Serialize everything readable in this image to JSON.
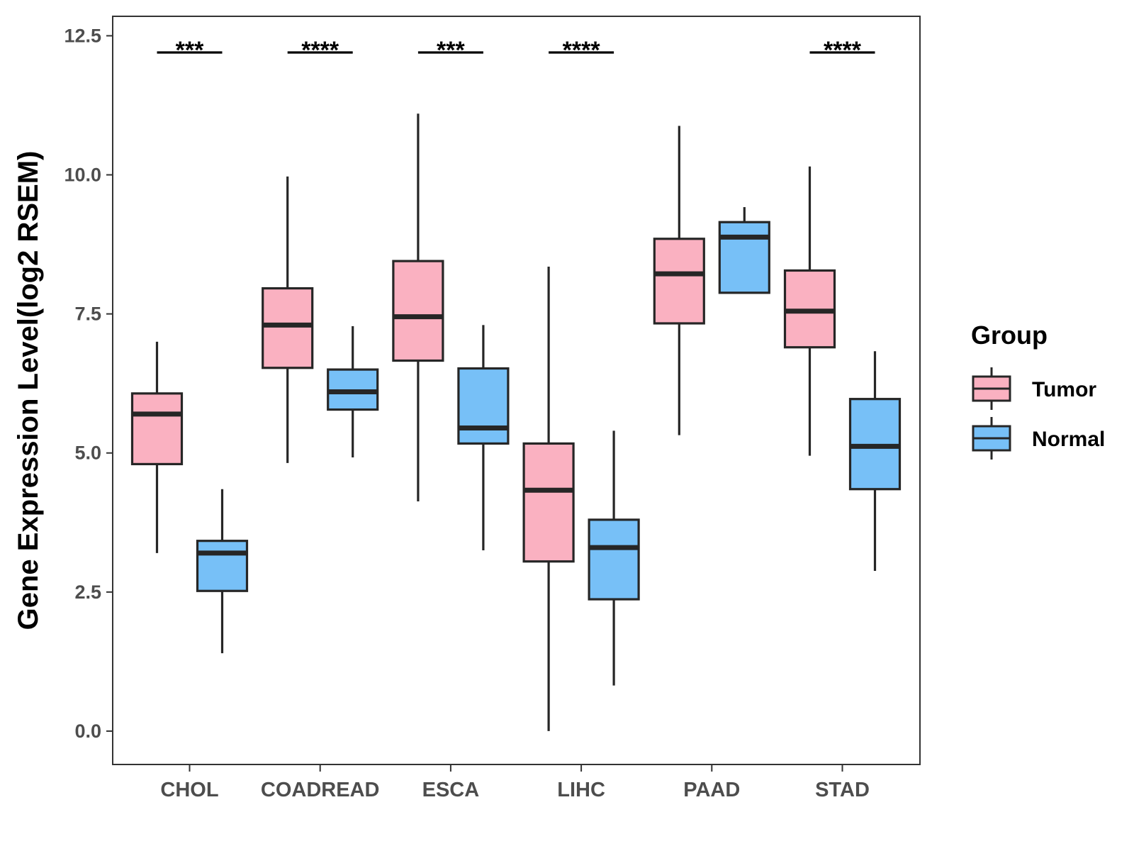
{
  "chart_data": {
    "type": "boxplot",
    "title": "",
    "xlabel": "",
    "ylabel": "Gene Expression Level(log2 RSEM)",
    "ylim": [
      -0.6,
      12.85
    ],
    "yticks": [
      0.0,
      2.5,
      5.0,
      7.5,
      10.0,
      12.5
    ],
    "ytick_labels": [
      "0.0",
      "2.5",
      "5.0",
      "7.5",
      "10.0",
      "12.5"
    ],
    "categories": [
      "CHOL",
      "COADREAD",
      "ESCA",
      "LIHC",
      "PAAD",
      "STAD"
    ],
    "grid": false,
    "legend": {
      "title": "Group",
      "position": "right"
    },
    "series": [
      {
        "name": "Tumor",
        "color": "#fab1c1",
        "boxes": [
          {
            "whisker_low": 3.2,
            "q1": 4.8,
            "median": 5.7,
            "q3": 6.07,
            "whisker_high": 7.0
          },
          {
            "whisker_low": 4.82,
            "q1": 6.53,
            "median": 7.3,
            "q3": 7.96,
            "whisker_high": 9.97
          },
          {
            "whisker_low": 4.13,
            "q1": 6.66,
            "median": 7.45,
            "q3": 8.45,
            "whisker_high": 11.1
          },
          {
            "whisker_low": 0.0,
            "q1": 3.05,
            "median": 4.33,
            "q3": 5.17,
            "whisker_high": 8.35
          },
          {
            "whisker_low": 5.32,
            "q1": 7.33,
            "median": 8.22,
            "q3": 8.85,
            "whisker_high": 10.88
          },
          {
            "whisker_low": 4.95,
            "q1": 6.9,
            "median": 7.55,
            "q3": 8.28,
            "whisker_high": 10.15
          }
        ]
      },
      {
        "name": "Normal",
        "color": "#77c0f7",
        "boxes": [
          {
            "whisker_low": 1.4,
            "q1": 2.52,
            "median": 3.2,
            "q3": 3.42,
            "whisker_high": 4.35
          },
          {
            "whisker_low": 4.92,
            "q1": 5.78,
            "median": 6.1,
            "q3": 6.5,
            "whisker_high": 7.28
          },
          {
            "whisker_low": 3.25,
            "q1": 5.17,
            "median": 5.45,
            "q3": 6.52,
            "whisker_high": 7.3
          },
          {
            "whisker_low": 0.82,
            "q1": 2.37,
            "median": 3.3,
            "q3": 3.8,
            "whisker_high": 5.4
          },
          {
            "whisker_low": 7.88,
            "q1": 7.88,
            "median": 8.88,
            "q3": 9.15,
            "whisker_high": 9.42
          },
          {
            "whisker_low": 2.88,
            "q1": 4.35,
            "median": 5.12,
            "q3": 5.97,
            "whisker_high": 6.83
          }
        ]
      }
    ],
    "annotations": [
      {
        "category": "CHOL",
        "label": "***",
        "y": 12.2
      },
      {
        "category": "COADREAD",
        "label": "****",
        "y": 12.2
      },
      {
        "category": "ESCA",
        "label": "***",
        "y": 12.2
      },
      {
        "category": "LIHC",
        "label": "****",
        "y": 12.2
      },
      {
        "category": "STAD",
        "label": "****",
        "y": 12.2
      }
    ]
  }
}
